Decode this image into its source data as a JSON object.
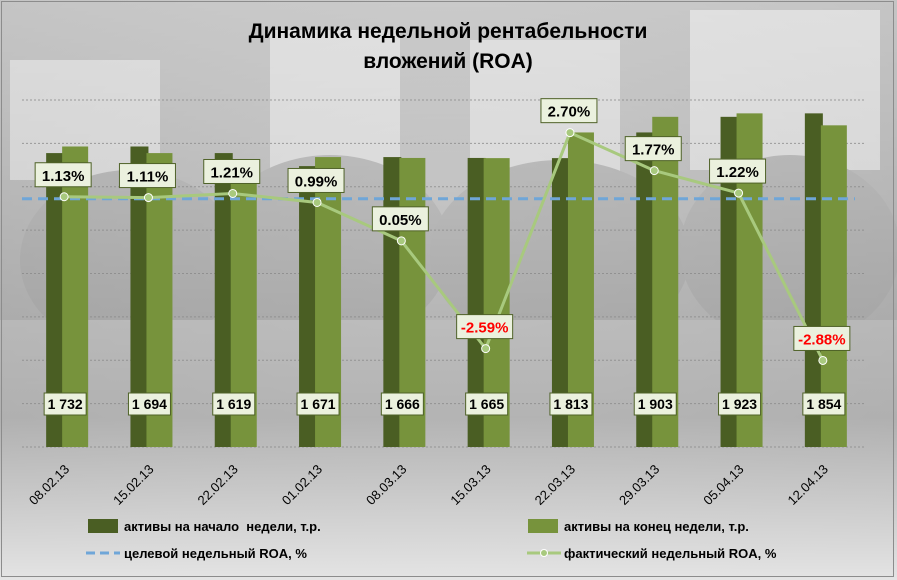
{
  "chart_data": {
    "type": "bar",
    "title_line1": "Динамика недельной рентабельности",
    "title_line2": "вложений (ROA)",
    "categories": [
      "08.02.13",
      "15.02.13",
      "22.02.13",
      "01.02.13",
      "08.03.13",
      "15.03.13",
      "22.03.13",
      "29.03.13",
      "05.04.13",
      "12.04.13"
    ],
    "series": [
      {
        "name": "активы на начало  недели, т.р.",
        "type": "bar",
        "color": "#4a5e23",
        "values": [
          1694,
          1732,
          1694,
          1619,
          1671,
          1666,
          1665,
          1813,
          1903,
          1923
        ]
      },
      {
        "name": "активы на конец недели, т.р.",
        "type": "bar",
        "color": "#77933c",
        "values": [
          1732,
          1694,
          1619,
          1671,
          1666,
          1665,
          1813,
          1903,
          1923,
          1854
        ]
      },
      {
        "name": "целевой недельный ROA, %",
        "type": "line",
        "style": "dashed",
        "color": "#6fa6d8",
        "values": [
          1.13,
          1.13,
          1.13,
          1.13,
          1.13,
          1.13,
          1.13,
          1.13,
          1.13,
          1.13
        ]
      },
      {
        "name": "фактический недельный ROA, %",
        "type": "line",
        "color": "#a8c97e",
        "values": [
          1.13,
          1.11,
          1.21,
          0.99,
          0.05,
          -2.59,
          2.7,
          1.77,
          1.22,
          -2.88
        ]
      }
    ],
    "bar_labels": [
      "1 732",
      "1 694",
      "1 619",
      "1 671",
      "1 666",
      "1 665",
      "1 813",
      "1 903",
      "1 923",
      "1 854"
    ],
    "roa_labels": [
      "1.13%",
      "1.11%",
      "1.21%",
      "0.99%",
      "0.05%",
      "-2.59%",
      "2.70%",
      "1.77%",
      "1.22%",
      "-2.88%"
    ],
    "bar_axis_range": [
      0,
      2000
    ],
    "roa_axis_range": [
      -5,
      3.5
    ],
    "gridlines": true,
    "legend_position": "bottom",
    "colors": {
      "background": "#3b3b3b",
      "negative_label": "#ff0000",
      "label_box": "#ebf1de",
      "label_border": "#4f6228"
    }
  }
}
